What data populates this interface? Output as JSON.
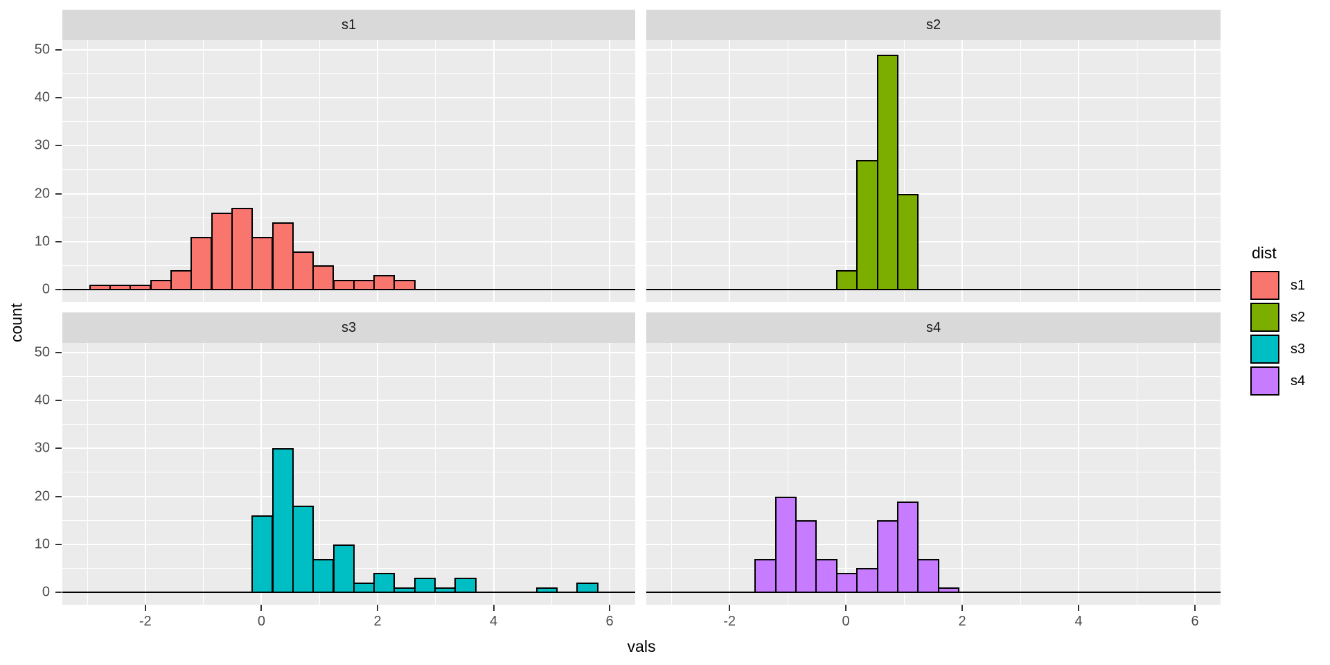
{
  "figure": {
    "bg": "#ffffff",
    "panel_bg": "#ebebeb",
    "strip_bg": "#d9d9d9",
    "grid_color": "#ffffff",
    "tick_color": "#333333",
    "tick_label_color": "#4d4d4d",
    "bar_border_color": "#000000"
  },
  "chart_data": {
    "type": "bar",
    "subtype": "faceted-histogram",
    "xlabel": "vals",
    "ylabel": "count",
    "legend_title": "dist",
    "binwidth": 0.35,
    "xlim": [
      -3.43,
      6.44
    ],
    "ylim": [
      -2.6,
      52
    ],
    "x_ticks": [
      -2,
      0,
      2,
      4,
      6
    ],
    "x_minor_gridlines": [
      -3,
      -1,
      1,
      3,
      5
    ],
    "y_ticks": [
      0,
      10,
      20,
      30,
      40,
      50
    ],
    "y_minor_gridlines": [
      5,
      15,
      25,
      35,
      45
    ],
    "grid": true,
    "legend_position": "right",
    "facets": [
      {
        "label": "s1",
        "color": "#F8766D",
        "bin_start": -2.97,
        "counts": [
          1,
          1,
          1,
          2,
          4,
          11,
          16,
          17,
          11,
          14,
          8,
          5,
          2,
          2,
          3,
          2
        ]
      },
      {
        "label": "s2",
        "color": "#7CAE00",
        "bin_start": -0.17,
        "counts": [
          4,
          27,
          49,
          20
        ]
      },
      {
        "label": "s3",
        "color": "#00BFC4",
        "bin_start": -0.17,
        "counts": [
          16,
          30,
          18,
          7,
          10,
          2,
          4,
          1,
          3,
          1,
          3,
          0,
          0,
          0,
          1,
          0,
          2
        ]
      },
      {
        "label": "s4",
        "color": "#C77CFF",
        "bin_start": -1.57,
        "counts": [
          7,
          20,
          15,
          7,
          4,
          5,
          15,
          19,
          7,
          1
        ]
      }
    ],
    "legend": {
      "title": "dist",
      "entries": [
        {
          "label": "s1",
          "color": "#F8766D"
        },
        {
          "label": "s2",
          "color": "#7CAE00"
        },
        {
          "label": "s3",
          "color": "#00BFC4"
        },
        {
          "label": "s4",
          "color": "#C77CFF"
        }
      ]
    }
  }
}
